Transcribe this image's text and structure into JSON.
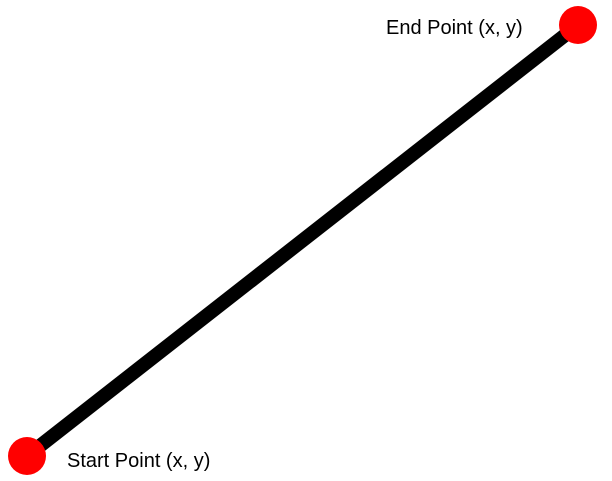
{
  "colors": {
    "background": "#ffffff",
    "line": "#000000",
    "point": "#ff0000",
    "text": "#000000"
  },
  "diagram": {
    "segment": {
      "start": {
        "label": "Start Point (x, y)",
        "icon": "red-dot"
      },
      "end": {
        "label": "End Point (x, y)",
        "icon": "red-dot"
      }
    }
  }
}
